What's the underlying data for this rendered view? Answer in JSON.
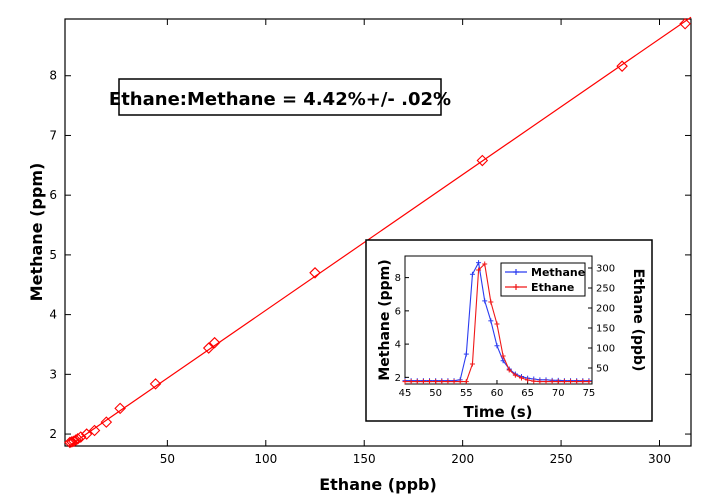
{
  "chart_data": [
    {
      "type": "scatter",
      "annotation": "Ethane:Methane = 4.42%+/- .02%",
      "xlabel": "Ethane (ppb)",
      "ylabel": "Methane (ppm)",
      "xlim": [
        -2,
        316
      ],
      "ylim": [
        1.8,
        8.95
      ],
      "xticks": [
        50,
        100,
        150,
        200,
        250,
        300
      ],
      "yticks": [
        2,
        3,
        4,
        5,
        6,
        7,
        8
      ],
      "marker": "diamond",
      "color": "#ff0000",
      "series": [
        {
          "x": [
            0.5,
            1.5,
            2.5,
            3.5,
            4.5,
            6,
            9,
            13,
            19,
            26,
            44,
            71,
            74,
            125,
            210,
            281,
            313
          ],
          "y": [
            1.86,
            1.87,
            1.88,
            1.9,
            1.92,
            1.95,
            2.0,
            2.06,
            2.2,
            2.43,
            2.84,
            3.44,
            3.53,
            4.7,
            6.58,
            8.16,
            8.87
          ]
        }
      ],
      "fit_line": {
        "x": [
          0,
          316
        ],
        "y": [
          1.8,
          8.98
        ]
      }
    },
    {
      "type": "line",
      "inset": true,
      "xlabel": "Time (s)",
      "ylabel": "Methane (ppm)",
      "y2label": "Ethane (ppb)",
      "xlim": [
        45,
        75.5
      ],
      "ylim": [
        1.6,
        9.3
      ],
      "y2lim": [
        10,
        330
      ],
      "xticks": [
        45,
        50,
        55,
        60,
        65,
        70,
        75
      ],
      "yticks": [
        2,
        4,
        6,
        8
      ],
      "y2ticks": [
        50,
        100,
        150,
        200,
        250,
        300
      ],
      "legend_position": "top-right",
      "series": [
        {
          "name": "Methane",
          "axis": "left",
          "color": "#2b3cf0",
          "x": [
            45,
            46,
            47,
            48,
            49,
            50,
            51,
            52,
            53,
            54,
            55,
            56,
            57,
            58,
            59,
            60,
            61,
            62,
            63,
            64,
            65,
            66,
            67,
            68,
            69,
            70,
            71,
            72,
            73,
            74,
            75
          ],
          "y": [
            1.8,
            1.8,
            1.8,
            1.8,
            1.8,
            1.8,
            1.8,
            1.8,
            1.8,
            1.85,
            3.4,
            8.2,
            8.9,
            6.6,
            5.4,
            3.9,
            3.0,
            2.5,
            2.2,
            2.05,
            1.95,
            1.9,
            1.85,
            1.85,
            1.82,
            1.82,
            1.8,
            1.8,
            1.8,
            1.8,
            1.8
          ]
        },
        {
          "name": "Ethane",
          "axis": "right",
          "color": "#f01818",
          "x": [
            45,
            46,
            47,
            48,
            49,
            50,
            51,
            52,
            53,
            54,
            55,
            56,
            57,
            58,
            59,
            60,
            61,
            62,
            63,
            64,
            65,
            66,
            67,
            68,
            69,
            70,
            71,
            72,
            73,
            74,
            75
          ],
          "y": [
            16,
            16,
            16,
            16,
            16,
            16,
            16,
            16,
            16,
            16,
            16,
            60,
            295,
            310,
            215,
            160,
            80,
            45,
            32,
            25,
            20,
            17,
            16,
            16,
            16,
            16,
            16,
            16,
            16,
            16,
            16
          ]
        }
      ]
    }
  ]
}
